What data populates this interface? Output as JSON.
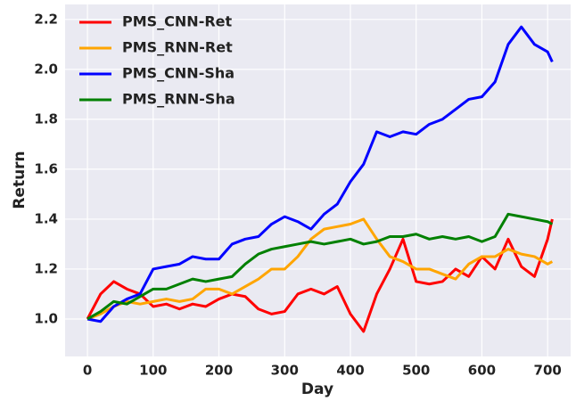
{
  "chart_data": {
    "type": "line",
    "x_label": "Day",
    "y_label": "Return",
    "x": [
      0,
      20,
      40,
      60,
      80,
      100,
      120,
      140,
      160,
      180,
      200,
      220,
      240,
      260,
      280,
      300,
      320,
      340,
      360,
      380,
      400,
      420,
      440,
      460,
      480,
      500,
      520,
      540,
      560,
      580,
      600,
      620,
      640,
      660,
      680,
      700,
      707
    ],
    "series": [
      {
        "name": "PMS_CNN-Ret",
        "color": "#ff0000",
        "values": [
          1.0,
          1.1,
          1.15,
          1.12,
          1.1,
          1.05,
          1.06,
          1.04,
          1.06,
          1.05,
          1.08,
          1.1,
          1.09,
          1.04,
          1.02,
          1.03,
          1.1,
          1.12,
          1.1,
          1.13,
          1.02,
          0.95,
          1.1,
          1.2,
          1.32,
          1.15,
          1.14,
          1.15,
          1.2,
          1.17,
          1.25,
          1.2,
          1.32,
          1.21,
          1.17,
          1.32,
          1.4
        ]
      },
      {
        "name": "PMS_RNN-Ret",
        "color": "#ffa500",
        "values": [
          1.0,
          1.02,
          1.05,
          1.07,
          1.06,
          1.07,
          1.08,
          1.07,
          1.08,
          1.12,
          1.12,
          1.1,
          1.13,
          1.16,
          1.2,
          1.2,
          1.25,
          1.32,
          1.36,
          1.37,
          1.38,
          1.4,
          1.32,
          1.25,
          1.23,
          1.2,
          1.2,
          1.18,
          1.16,
          1.22,
          1.25,
          1.25,
          1.28,
          1.26,
          1.25,
          1.22,
          1.23
        ]
      },
      {
        "name": "PMS_CNN-Sha",
        "color": "#0000ff",
        "values": [
          1.0,
          0.99,
          1.05,
          1.08,
          1.1,
          1.2,
          1.21,
          1.22,
          1.25,
          1.24,
          1.24,
          1.3,
          1.32,
          1.33,
          1.38,
          1.41,
          1.39,
          1.36,
          1.42,
          1.46,
          1.55,
          1.62,
          1.75,
          1.73,
          1.75,
          1.74,
          1.78,
          1.8,
          1.84,
          1.88,
          1.89,
          1.95,
          2.1,
          2.17,
          2.1,
          2.07,
          2.03
        ]
      },
      {
        "name": "PMS_RNN-Sha",
        "color": "#008000",
        "values": [
          1.0,
          1.03,
          1.07,
          1.06,
          1.09,
          1.12,
          1.12,
          1.14,
          1.16,
          1.15,
          1.16,
          1.17,
          1.22,
          1.26,
          1.28,
          1.29,
          1.3,
          1.31,
          1.3,
          1.31,
          1.32,
          1.3,
          1.31,
          1.33,
          1.33,
          1.34,
          1.32,
          1.33,
          1.32,
          1.33,
          1.31,
          1.33,
          1.42,
          1.41,
          1.4,
          1.39,
          1.38
        ]
      }
    ],
    "xlim": [
      -34,
      735
    ],
    "ylim": [
      0.85,
      2.26
    ],
    "xticks": [
      0,
      100,
      200,
      300,
      400,
      500,
      600,
      700
    ],
    "yticks": [
      {
        "value": 1.0,
        "label": "1.0"
      },
      {
        "value": 1.2,
        "label": "1.2"
      },
      {
        "value": 1.4,
        "label": "1.4"
      },
      {
        "value": 1.6,
        "label": "1.6"
      },
      {
        "value": 1.8,
        "label": "1.8"
      },
      {
        "value": 2.0,
        "label": "2.0"
      },
      {
        "value": 2.2,
        "label": "2.2"
      }
    ],
    "grid": true,
    "legend": "upper-left"
  }
}
